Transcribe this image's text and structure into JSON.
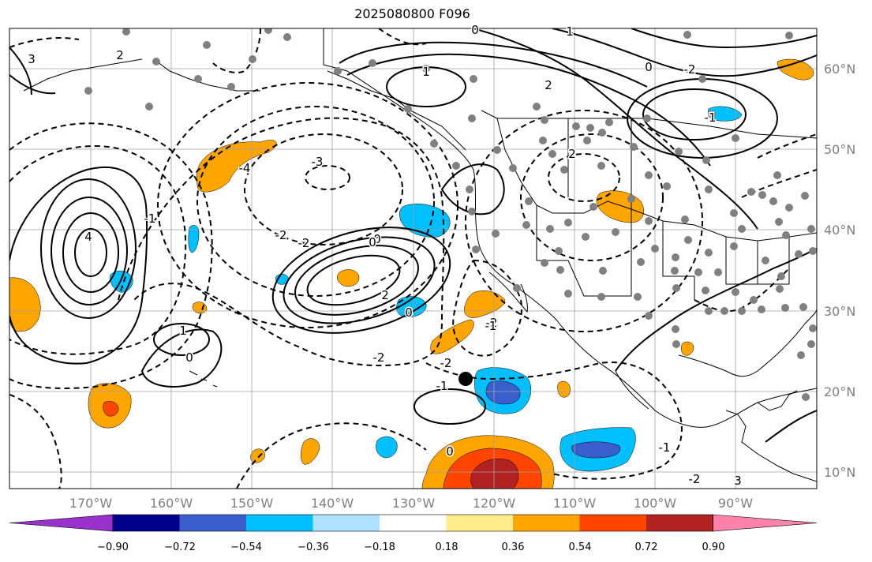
{
  "title": "2025080800 F096",
  "map": {
    "lon_labels": [
      "170°W",
      "160°W",
      "150°W",
      "140°W",
      "130°W",
      "120°W",
      "110°W",
      "100°W",
      "90°W"
    ],
    "lat_labels": [
      "60°N",
      "50°N",
      "40°N",
      "30°N",
      "20°N",
      "10°N"
    ],
    "gridlines": true,
    "coastline_color": "#000000",
    "contour_labels": [
      "0",
      "2",
      "3",
      "4",
      "-1",
      "-2",
      "-3",
      "-4",
      "-2",
      "1",
      "0",
      "1",
      "2",
      "-2",
      "-1",
      "0",
      "2",
      "-2",
      "0",
      "-1",
      "-2",
      "1",
      "0",
      "-2",
      "-1",
      "2",
      "0",
      "-1",
      "3",
      "-2",
      "0"
    ]
  },
  "colorbar": {
    "ticks": [
      "−0.90",
      "−0.72",
      "−0.54",
      "−0.36",
      "−0.18",
      "0.18",
      "0.36",
      "0.54",
      "0.72",
      "0.90"
    ],
    "colors": [
      "#9932cc",
      "#00008b",
      "#3a5fcd",
      "#00bfff",
      "#b0e2ff",
      "#ffffff",
      "#ffec8b",
      "#ffa500",
      "#ff4500",
      "#b22222",
      "#ff82ab"
    ]
  }
}
